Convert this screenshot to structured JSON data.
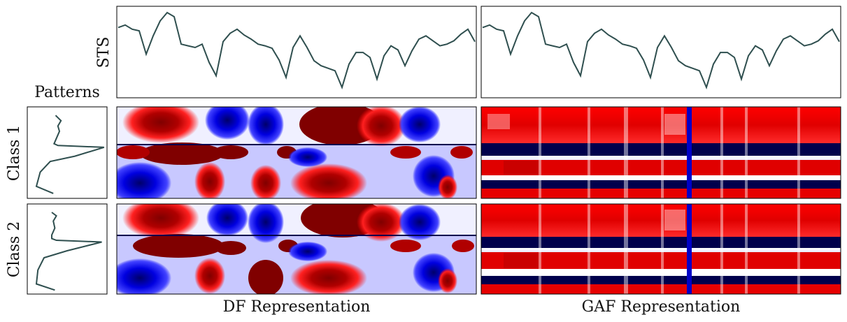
{
  "figure": {
    "row_labels": [
      "STS",
      "Class 1",
      "Class 2"
    ],
    "patterns_title": "Patterns",
    "column_labels": [
      "DF Representation",
      "GAF Representation"
    ]
  },
  "colors": {
    "line": "#2f4f4f",
    "deep_red": "#800000",
    "red": "#ff0000",
    "white": "#ffffff",
    "blue": "#0000ff",
    "navy": "#00004c"
  },
  "chart_data": [
    {
      "type": "line",
      "title": "STS",
      "description_panels": [
        "DF column",
        "GAF column"
      ],
      "x": [
        0,
        10,
        20,
        30,
        40,
        50,
        60,
        70,
        80,
        90,
        100,
        110,
        120,
        130,
        140,
        150,
        160,
        170,
        180,
        190,
        200,
        210,
        220,
        230,
        240,
        250,
        260,
        270,
        280,
        290,
        300,
        310,
        320,
        330,
        340,
        350,
        360,
        370,
        380,
        390,
        400,
        410,
        420,
        430,
        440,
        450,
        460,
        470,
        480,
        490,
        500,
        510
      ],
      "y": [
        0.82,
        0.85,
        0.8,
        0.78,
        0.5,
        0.72,
        0.9,
        1.0,
        0.95,
        0.62,
        0.6,
        0.58,
        0.62,
        0.4,
        0.24,
        0.65,
        0.75,
        0.8,
        0.73,
        0.68,
        0.62,
        0.6,
        0.57,
        0.43,
        0.22,
        0.58,
        0.72,
        0.58,
        0.42,
        0.36,
        0.33,
        0.3,
        0.1,
        0.38,
        0.52,
        0.52,
        0.46,
        0.2,
        0.48,
        0.6,
        0.55,
        0.36,
        0.54,
        0.68,
        0.72,
        0.66,
        0.6,
        0.62,
        0.66,
        0.74,
        0.8,
        0.65
      ]
    },
    {
      "type": "line",
      "title": "Class 1 Pattern",
      "x": [
        0.35,
        0.42,
        0.38,
        0.4,
        0.36,
        0.33,
        0.38,
        0.98,
        0.6,
        0.28,
        0.15,
        0.1,
        0.32
      ],
      "y": [
        0.92,
        0.86,
        0.8,
        0.74,
        0.66,
        0.6,
        0.58,
        0.56,
        0.46,
        0.4,
        0.28,
        0.12,
        0.04
      ]
    },
    {
      "type": "line",
      "title": "Class 2 Pattern",
      "x": [
        0.3,
        0.36,
        0.32,
        0.34,
        0.3,
        0.3,
        0.36,
        0.95,
        0.5,
        0.2,
        0.12,
        0.1,
        0.34
      ],
      "y": [
        0.92,
        0.88,
        0.82,
        0.74,
        0.66,
        0.62,
        0.6,
        0.58,
        0.48,
        0.4,
        0.26,
        0.1,
        0.03
      ]
    },
    {
      "type": "heatmap",
      "title": "DF Representation",
      "rows": [
        "Class 1",
        "Class 2"
      ],
      "colormap": "seismic"
    },
    {
      "type": "heatmap",
      "title": "GAF Representation",
      "rows": [
        "Class 1",
        "Class 2"
      ],
      "colormap": "seismic"
    }
  ]
}
